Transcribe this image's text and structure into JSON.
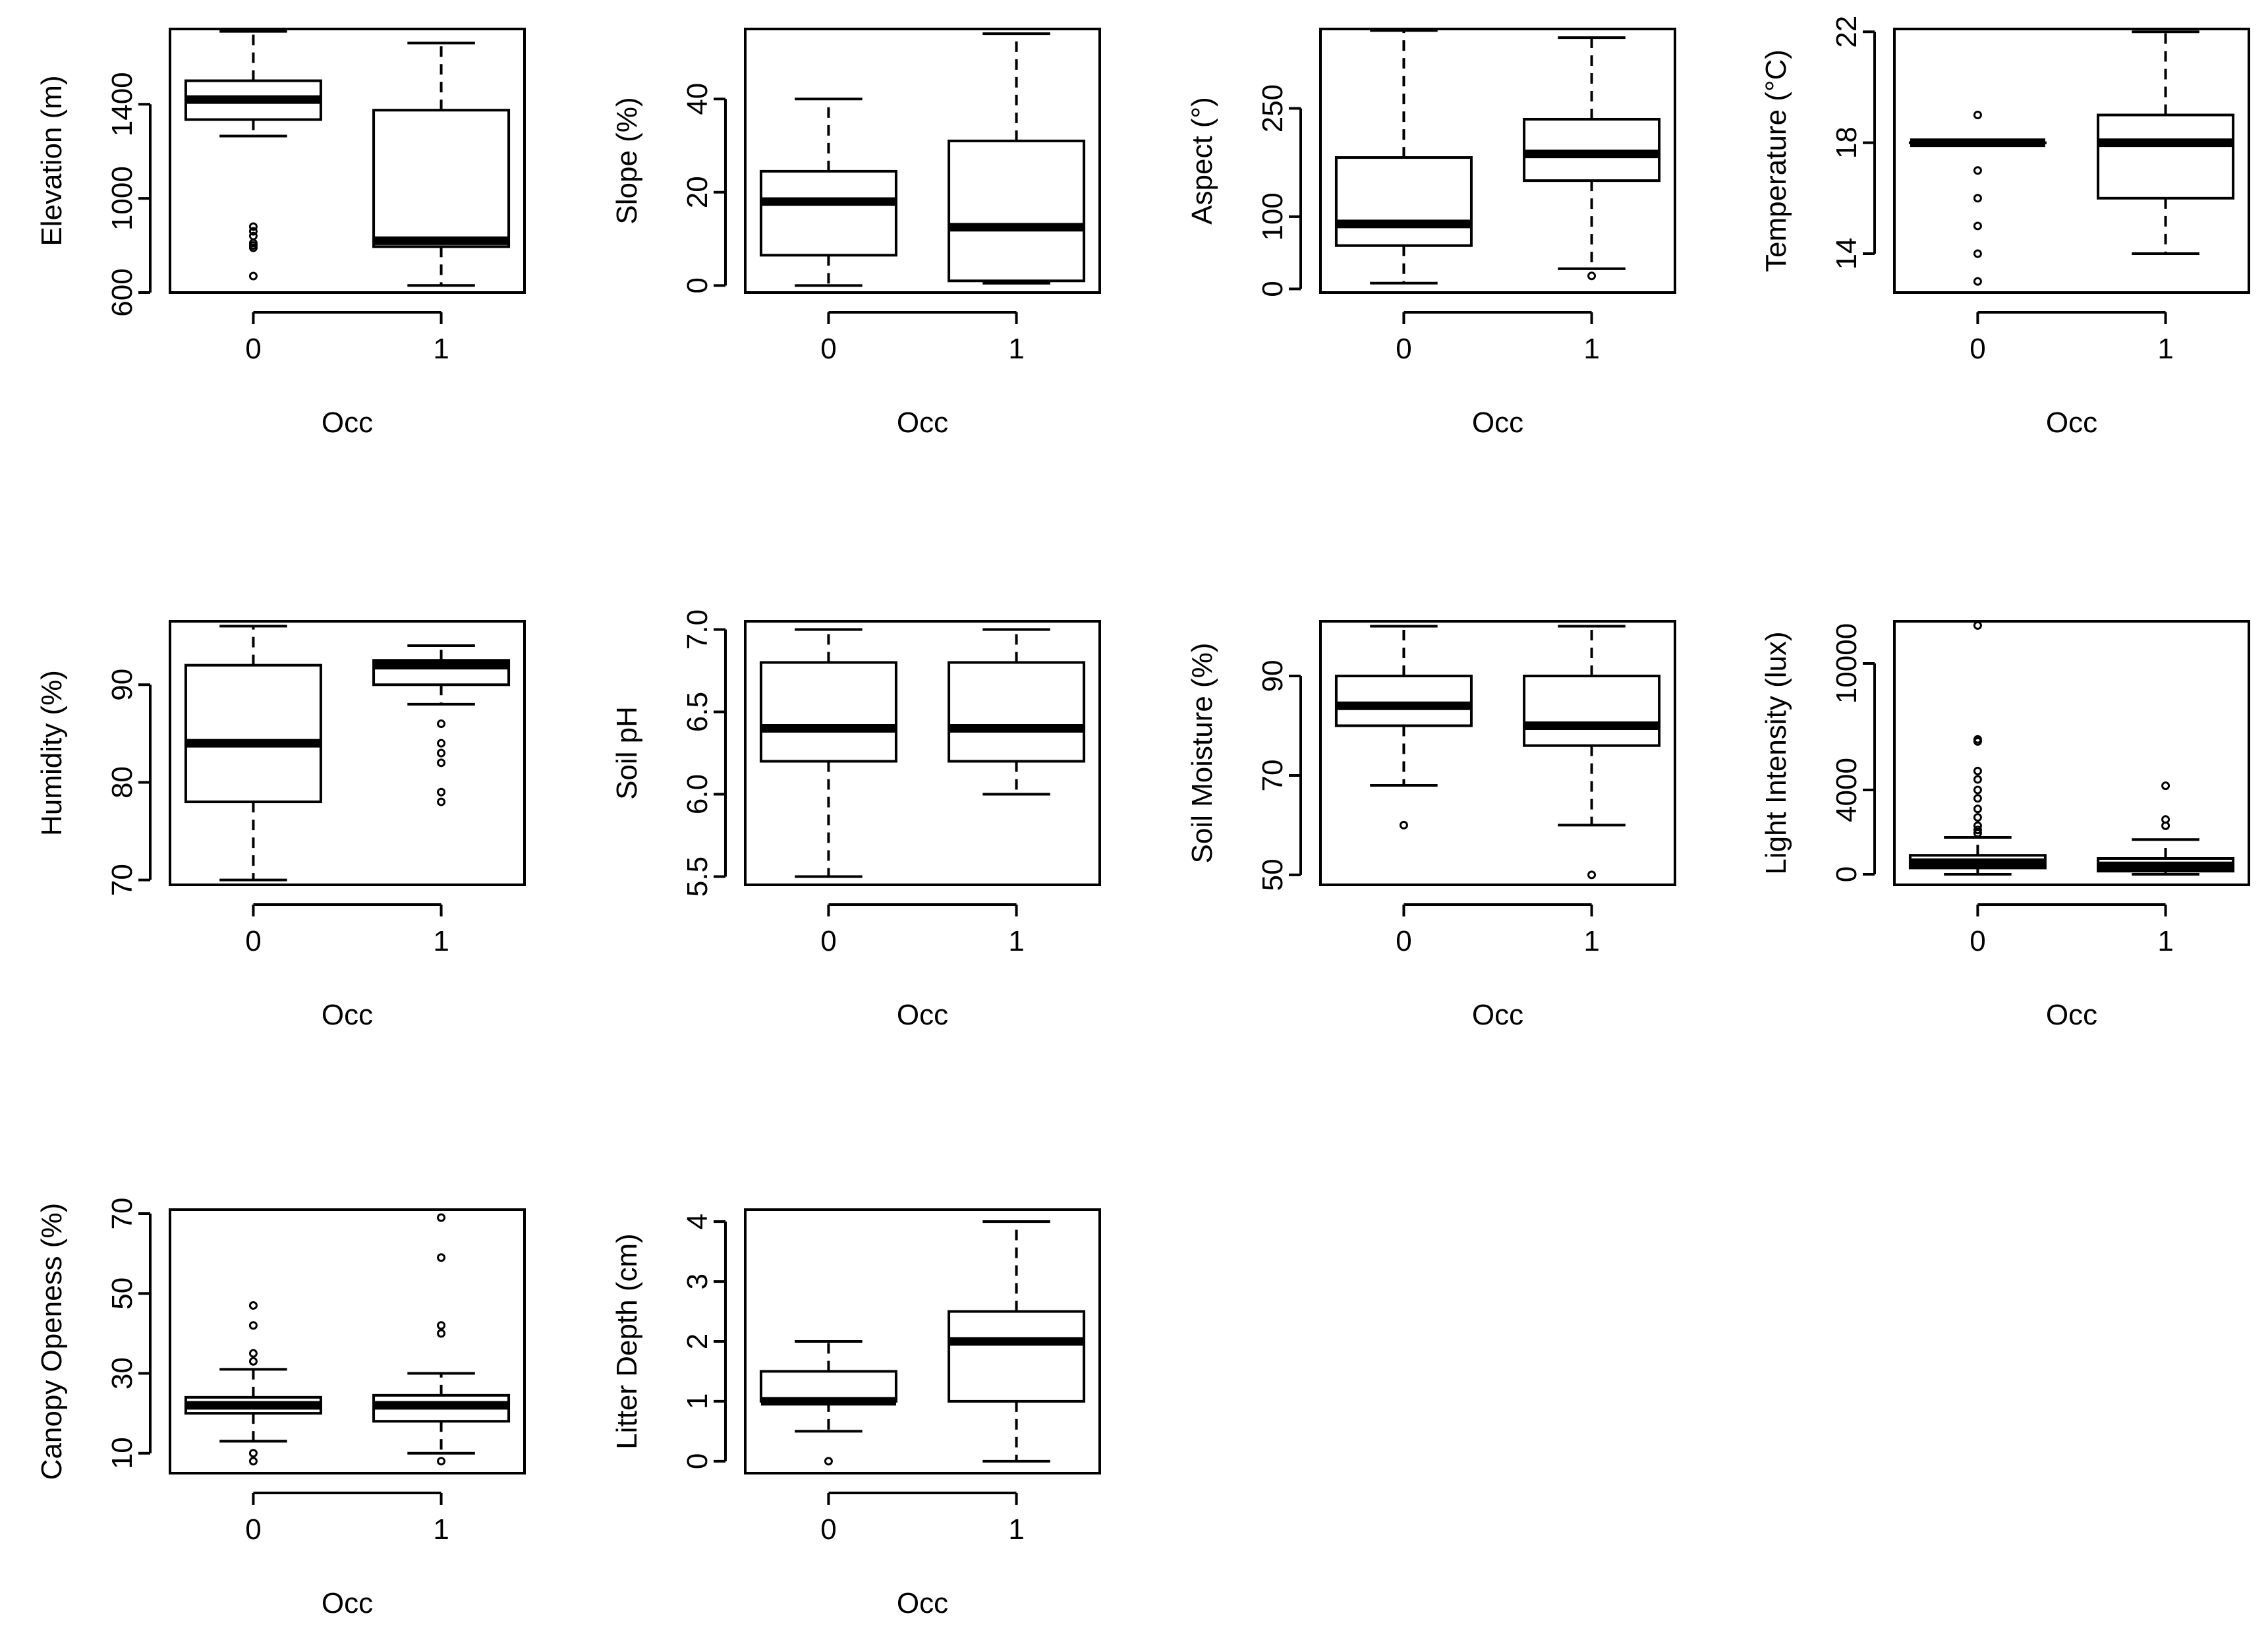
{
  "chart_data": [
    {
      "type": "box",
      "ylabel": "Elevation (m)",
      "xlabel": "Occ",
      "categories": [
        "0",
        "1"
      ],
      "yticks": [
        600,
        1000,
        1400
      ],
      "ylim": [
        600,
        1720
      ],
      "boxes": [
        {
          "min": 1265,
          "q1": 1335,
          "median": 1420,
          "q3": 1500,
          "max": 1710,
          "outliers": [
            880,
            860,
            840,
            810,
            800,
            790,
            670
          ]
        },
        {
          "min": 630,
          "q1": 795,
          "median": 820,
          "q3": 1375,
          "max": 1660,
          "outliers": []
        }
      ]
    },
    {
      "type": "box",
      "ylabel": "Slope (%)",
      "xlabel": "Occ",
      "categories": [
        "0",
        "1"
      ],
      "yticks": [
        0,
        20,
        40
      ],
      "ylim": [
        -1.5,
        55
      ],
      "boxes": [
        {
          "min": 0,
          "q1": 6.5,
          "median": 18,
          "q3": 24.5,
          "max": 40,
          "outliers": []
        },
        {
          "min": 0.5,
          "q1": 1,
          "median": 12.5,
          "q3": 31,
          "max": 54,
          "outliers": []
        }
      ]
    },
    {
      "type": "box",
      "ylabel": "Aspect (°)",
      "xlabel": "Occ",
      "categories": [
        "0",
        "1"
      ],
      "yticks": [
        0,
        100,
        250
      ],
      "ylim": [
        -5,
        360
      ],
      "boxes": [
        {
          "min": 8,
          "q1": 60,
          "median": 90,
          "q3": 182,
          "max": 358,
          "outliers": []
        },
        {
          "min": 28,
          "q1": 150,
          "median": 187,
          "q3": 235,
          "max": 348,
          "outliers": [
            18
          ]
        }
      ]
    },
    {
      "type": "box",
      "ylabel": "Temperature (°C)",
      "xlabel": "Occ",
      "categories": [
        "0",
        "1"
      ],
      "yticks": [
        14,
        18,
        22
      ],
      "ylim": [
        12.6,
        22.1
      ],
      "boxes": [
        {
          "min": 18,
          "q1": 18,
          "median": 18,
          "q3": 18,
          "max": 18,
          "outliers": [
            19,
            17,
            16,
            15,
            14,
            13
          ]
        },
        {
          "min": 14,
          "q1": 16,
          "median": 18,
          "q3": 19,
          "max": 22,
          "outliers": []
        }
      ]
    },
    {
      "type": "box",
      "ylabel": "Humidity (%)",
      "xlabel": "Occ",
      "categories": [
        "0",
        "1"
      ],
      "yticks": [
        70,
        80,
        90
      ],
      "ylim": [
        69.5,
        96.5
      ],
      "boxes": [
        {
          "min": 70,
          "q1": 78,
          "median": 84,
          "q3": 92,
          "max": 96,
          "outliers": []
        },
        {
          "min": 88,
          "q1": 90,
          "median": 92,
          "q3": 92.5,
          "max": 94,
          "outliers": [
            86,
            84,
            83,
            82,
            79,
            78
          ]
        }
      ]
    },
    {
      "type": "box",
      "ylabel": "Soil pH",
      "xlabel": "Occ",
      "categories": [
        "0",
        "1"
      ],
      "yticks": [
        "5.5",
        "6.0",
        "6.5",
        "7.0"
      ],
      "ylim": [
        5.45,
        7.05
      ],
      "boxes": [
        {
          "min": 5.5,
          "q1": 6.2,
          "median": 6.4,
          "q3": 6.8,
          "max": 7.0,
          "outliers": []
        },
        {
          "min": 6.0,
          "q1": 6.2,
          "median": 6.4,
          "q3": 6.8,
          "max": 7.0,
          "outliers": []
        }
      ]
    },
    {
      "type": "box",
      "ylabel": "Soil Moisture (%)",
      "xlabel": "Occ",
      "categories": [
        "0",
        "1"
      ],
      "yticks": [
        50,
        70,
        90
      ],
      "ylim": [
        48,
        101
      ],
      "boxes": [
        {
          "min": 68,
          "q1": 80,
          "median": 84,
          "q3": 90,
          "max": 100,
          "outliers": [
            60
          ]
        },
        {
          "min": 60,
          "q1": 76,
          "median": 80,
          "q3": 90,
          "max": 100,
          "outliers": [
            50
          ]
        }
      ]
    },
    {
      "type": "box",
      "ylabel": "Light Intensity (lux)",
      "xlabel": "Occ",
      "categories": [
        "0",
        "1"
      ],
      "yticks": [
        0,
        4000,
        10000
      ],
      "ylim": [
        -500,
        12000
      ],
      "boxes": [
        {
          "min": 0,
          "q1": 300,
          "median": 550,
          "q3": 900,
          "max": 1750,
          "outliers": [
            11800,
            6400,
            6300,
            4900,
            4500,
            4000,
            3600,
            3100,
            2700,
            2300,
            2100,
            1950
          ]
        },
        {
          "min": 0,
          "q1": 150,
          "median": 400,
          "q3": 750,
          "max": 1650,
          "outliers": [
            4200,
            2600,
            2300
          ]
        }
      ]
    },
    {
      "type": "box",
      "ylabel": "Canopy Openess (%)",
      "xlabel": "Occ",
      "categories": [
        "0",
        "1"
      ],
      "yticks": [
        10,
        30,
        50,
        70
      ],
      "ylim": [
        5,
        71
      ],
      "boxes": [
        {
          "min": 13,
          "q1": 20,
          "median": 22,
          "q3": 24,
          "max": 31,
          "outliers": [
            47,
            42,
            35,
            33,
            10,
            8
          ]
        },
        {
          "min": 10,
          "q1": 18,
          "median": 22,
          "q3": 24.5,
          "max": 30,
          "outliers": [
            69,
            59,
            42,
            40,
            8
          ]
        }
      ]
    },
    {
      "type": "box",
      "ylabel": "Litter Depth (cm)",
      "xlabel": "Occ",
      "categories": [
        "0",
        "1"
      ],
      "yticks": [
        0,
        1,
        2,
        3,
        4
      ],
      "ylim": [
        -0.2,
        4.2
      ],
      "boxes": [
        {
          "min": 0.5,
          "q1": 1.0,
          "median": 1.0,
          "q3": 1.5,
          "max": 2.0,
          "outliers": [
            0
          ]
        },
        {
          "min": 0,
          "q1": 1.0,
          "median": 2.0,
          "q3": 2.5,
          "max": 4.0,
          "outliers": []
        }
      ]
    }
  ]
}
